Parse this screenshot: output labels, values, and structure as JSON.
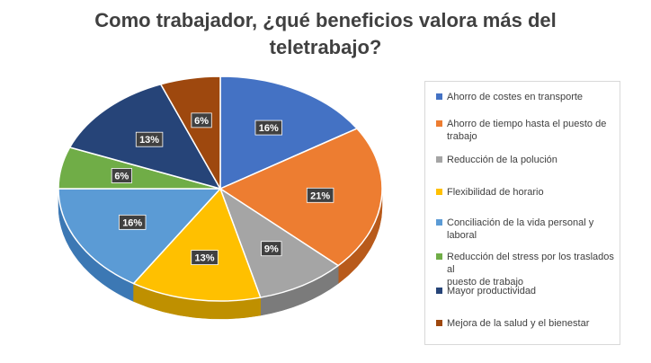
{
  "chart_data": {
    "type": "pie",
    "title_lines": [
      "Como trabajador, ¿qué beneficios valora más del",
      "teletrabajo?"
    ],
    "categories": [
      "Ahorro de costes en transporte",
      "Ahorro de tiempo hasta el puesto de trabajo",
      "Reducción de la polución",
      "Flexibilidad de horario",
      "Conciliación de la vida personal y laboral",
      "Reducción del stress por los traslados al puesto de trabajo",
      "Mayor productividad",
      "Mejora de la salud y el bienestar"
    ],
    "values": [
      16,
      21,
      9,
      13,
      16,
      6,
      13,
      6
    ],
    "data_labels": [
      "16%",
      "21%",
      "9%",
      "13%",
      "16%",
      "6%",
      "13%",
      "6%"
    ],
    "legend_lines": [
      [
        "Ahorro de costes en transporte"
      ],
      [
        "Ahorro de tiempo hasta el puesto de",
        "trabajo"
      ],
      [
        "Reducción de la polución"
      ],
      [
        "Flexibilidad de horario"
      ],
      [
        "Conciliación de la vida personal y laboral"
      ],
      [
        "Reducción del stress por los traslados al",
        "puesto de trabajo"
      ],
      [
        "Mayor productividad"
      ],
      [
        "Mejora de la salud y el bienestar"
      ]
    ],
    "colors": [
      "#4472c4",
      "#ed7d31",
      "#a5a5a5",
      "#ffc000",
      "#5b9bd5",
      "#70ad47",
      "#264478",
      "#9e480e"
    ],
    "side_colors": [
      "#2f5597",
      "#b85a1b",
      "#7b7b7b",
      "#bf9000",
      "#3c78b4",
      "#4e8030",
      "#1a2f55",
      "#6f3208"
    ],
    "legend_position": "right",
    "style": "3d"
  }
}
